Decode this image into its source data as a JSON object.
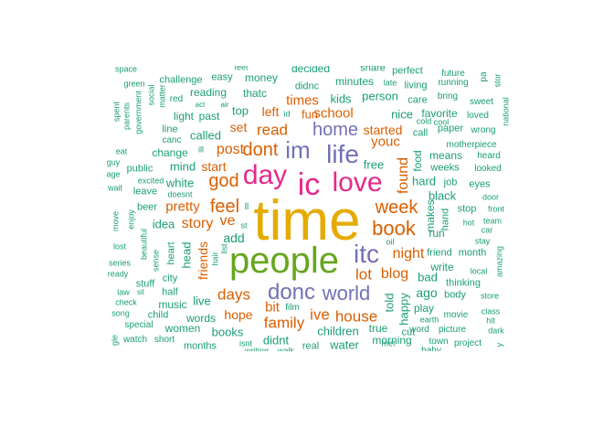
{
  "colors": {
    "green_teal": "#1b9e77",
    "orange": "#d95f02",
    "purple": "#7570b3",
    "magenta": "#e7298a",
    "lime": "#66a61e",
    "gold": "#e6ab02"
  },
  "words": [
    {
      "text": "time",
      "color": "gold",
      "weight": 100
    },
    {
      "text": "people",
      "color": "lime",
      "weight": 80
    },
    {
      "text": "ic",
      "color": "magenta",
      "weight": 60
    },
    {
      "text": "day",
      "color": "magenta",
      "weight": 55
    },
    {
      "text": "love",
      "color": "magenta",
      "weight": 55
    },
    {
      "text": "itc",
      "color": "purple",
      "weight": 45
    },
    {
      "text": "life",
      "color": "purple",
      "weight": 45
    },
    {
      "text": "im",
      "color": "purple",
      "weight": 42
    },
    {
      "text": "donc",
      "color": "purple",
      "weight": 40
    },
    {
      "text": "world",
      "color": "purple",
      "weight": 38
    },
    {
      "text": "home",
      "color": "purple",
      "weight": 34
    },
    {
      "text": "dont",
      "color": "orange",
      "weight": 32
    },
    {
      "text": "book",
      "color": "orange",
      "weight": 30
    },
    {
      "text": "week",
      "color": "orange",
      "weight": 28
    },
    {
      "text": "god",
      "color": "orange",
      "weight": 26
    },
    {
      "text": "feel",
      "color": "orange",
      "weight": 26
    },
    {
      "text": "house",
      "color": "orange",
      "weight": 24
    },
    {
      "text": "lot",
      "color": "orange",
      "weight": 24
    },
    {
      "text": "blog",
      "color": "orange",
      "weight": 24
    },
    {
      "text": "days",
      "color": "orange",
      "weight": 22
    },
    {
      "text": "family",
      "color": "orange",
      "weight": 22
    },
    {
      "text": "ive",
      "color": "orange",
      "weight": 22
    },
    {
      "text": "night",
      "color": "orange",
      "weight": 22
    },
    {
      "text": "post",
      "color": "orange",
      "weight": 20
    },
    {
      "text": "story",
      "color": "orange",
      "weight": 20
    },
    {
      "text": "youc",
      "color": "orange",
      "weight": 20
    },
    {
      "text": "read",
      "color": "orange",
      "weight": 20
    },
    {
      "text": "found",
      "color": "orange",
      "weight": 20
    },
    {
      "text": "school",
      "color": "orange",
      "weight": 18
    },
    {
      "text": "ve",
      "color": "orange",
      "weight": 18
    },
    {
      "text": "hope",
      "color": "orange",
      "weight": 18
    },
    {
      "text": "started",
      "color": "orange",
      "weight": 18
    },
    {
      "text": "times",
      "color": "orange",
      "weight": 18
    },
    {
      "text": "bit",
      "color": "orange",
      "weight": 18
    },
    {
      "text": "pretty",
      "color": "orange",
      "weight": 18
    },
    {
      "text": "start",
      "color": "orange",
      "weight": 18
    },
    {
      "text": "friends",
      "color": "orange",
      "weight": 18
    },
    {
      "text": "set",
      "color": "orange",
      "weight": 18
    },
    {
      "text": "left",
      "color": "orange",
      "weight": 18
    },
    {
      "text": "fun",
      "color": "orange",
      "weight": 17
    },
    {
      "text": "didnt",
      "color": "green_teal",
      "weight": 16
    },
    {
      "text": "children",
      "color": "green_teal",
      "weight": 16
    },
    {
      "text": "water",
      "color": "green_teal",
      "weight": 16
    },
    {
      "text": "black",
      "color": "green_teal",
      "weight": 16
    },
    {
      "text": "ago",
      "color": "green_teal",
      "weight": 16
    },
    {
      "text": "add",
      "color": "green_teal",
      "weight": 16
    },
    {
      "text": "top",
      "color": "green_teal",
      "weight": 16
    },
    {
      "text": "told",
      "color": "green_teal",
      "weight": 16
    },
    {
      "text": "happy",
      "color": "green_teal",
      "weight": 16
    },
    {
      "text": "hard",
      "color": "green_teal",
      "weight": 16
    },
    {
      "text": "free",
      "color": "green_teal",
      "weight": 16
    },
    {
      "text": "kids",
      "color": "green_teal",
      "weight": 15
    },
    {
      "text": "called",
      "color": "green_teal",
      "weight": 15
    },
    {
      "text": "live",
      "color": "green_teal",
      "weight": 15
    },
    {
      "text": "food",
      "color": "green_teal",
      "weight": 15
    },
    {
      "text": "person",
      "color": "green_teal",
      "weight": 15
    },
    {
      "text": "makes",
      "color": "green_teal",
      "weight": 15
    },
    {
      "text": "bad",
      "color": "green_teal",
      "weight": 15
    },
    {
      "text": "books",
      "color": "green_teal",
      "weight": 15
    },
    {
      "text": "nice",
      "color": "green_teal",
      "weight": 15
    },
    {
      "text": "mind",
      "color": "green_teal",
      "weight": 15
    },
    {
      "text": "white",
      "color": "green_teal",
      "weight": 15
    },
    {
      "text": "change",
      "color": "green_teal",
      "weight": 15
    },
    {
      "text": "idea",
      "color": "green_teal",
      "weight": 15
    },
    {
      "text": "head",
      "color": "green_teal",
      "weight": 15
    },
    {
      "text": "music",
      "color": "green_teal",
      "weight": 14
    },
    {
      "text": "minutes",
      "color": "green_teal",
      "weight": 14
    },
    {
      "text": "morning",
      "color": "green_teal",
      "weight": 14
    },
    {
      "text": "play",
      "color": "green_teal",
      "weight": 14
    },
    {
      "text": "reading",
      "color": "green_teal",
      "weight": 14
    },
    {
      "text": "favorite",
      "color": "green_teal",
      "weight": 14
    },
    {
      "text": "means",
      "color": "green_teal",
      "weight": 14
    },
    {
      "text": "write",
      "color": "green_teal",
      "weight": 14
    },
    {
      "text": "thatc",
      "color": "green_teal",
      "weight": 14
    },
    {
      "text": "money",
      "color": "green_teal",
      "weight": 14
    },
    {
      "text": "words",
      "color": "green_teal",
      "weight": 13
    },
    {
      "text": "women",
      "color": "green_teal",
      "weight": 13
    },
    {
      "text": "past",
      "color": "green_teal",
      "weight": 13
    },
    {
      "text": "run",
      "color": "green_teal",
      "weight": 13
    },
    {
      "text": "stop",
      "color": "green_teal",
      "weight": 13
    },
    {
      "text": "hand",
      "color": "green_teal",
      "weight": 13
    },
    {
      "text": "weeks",
      "color": "green_teal",
      "weight": 13
    },
    {
      "text": "didnc",
      "color": "green_teal",
      "weight": 13
    },
    {
      "text": "true",
      "color": "green_teal",
      "weight": 13
    },
    {
      "text": "light",
      "color": "green_teal",
      "weight": 12
    },
    {
      "text": "care",
      "color": "green_teal",
      "weight": 12
    },
    {
      "text": "call",
      "color": "green_teal",
      "weight": 12
    },
    {
      "text": "paper",
      "color": "green_teal",
      "weight": 12
    },
    {
      "text": "job",
      "color": "green_teal",
      "weight": 12
    },
    {
      "text": "eyes",
      "color": "green_teal",
      "weight": 12
    },
    {
      "text": "friend",
      "color": "green_teal",
      "weight": 12
    },
    {
      "text": "month",
      "color": "green_teal",
      "weight": 12
    },
    {
      "text": "thinking",
      "color": "green_teal",
      "weight": 12
    },
    {
      "text": "body",
      "color": "green_teal",
      "weight": 12
    },
    {
      "text": "cut",
      "color": "green_teal",
      "weight": 12
    },
    {
      "text": "living",
      "color": "green_teal",
      "weight": 12
    },
    {
      "text": "heart",
      "color": "green_teal",
      "weight": 12
    },
    {
      "text": "city",
      "color": "green_teal",
      "weight": 12
    },
    {
      "text": "half",
      "color": "green_teal",
      "weight": 12
    },
    {
      "text": "child",
      "color": "green_teal",
      "weight": 12
    },
    {
      "text": "easy",
      "color": "green_teal",
      "weight": 12
    },
    {
      "text": "challenge",
      "color": "green_teal",
      "weight": 12
    },
    {
      "text": "public",
      "color": "green_teal",
      "weight": 12
    },
    {
      "text": "leave",
      "color": "green_teal",
      "weight": 12
    },
    {
      "text": "beer",
      "color": "green_teal",
      "weight": 12
    },
    {
      "text": "stuff",
      "color": "green_teal",
      "weight": 12
    },
    {
      "text": "film",
      "color": "green_teal",
      "weight": 11
    },
    {
      "text": "special",
      "color": "green_teal",
      "weight": 11
    },
    {
      "text": "watch",
      "color": "green_teal",
      "weight": 11
    },
    {
      "text": "short",
      "color": "green_teal",
      "weight": 11
    },
    {
      "text": "months",
      "color": "green_teal",
      "weight": 11
    },
    {
      "text": "real",
      "color": "green_teal",
      "weight": 11
    },
    {
      "text": "running",
      "color": "green_teal",
      "weight": 11
    },
    {
      "text": "bring",
      "color": "green_teal",
      "weight": 11
    },
    {
      "text": "loved",
      "color": "green_teal",
      "weight": 11
    },
    {
      "text": "sweet",
      "color": "green_teal",
      "weight": 11
    },
    {
      "text": "wrong",
      "color": "green_teal",
      "weight": 11
    },
    {
      "text": "motherpiece",
      "color": "green_teal",
      "weight": 11
    },
    {
      "text": "heard",
      "color": "green_teal",
      "weight": 11
    },
    {
      "text": "looked",
      "color": "green_teal",
      "weight": 11
    },
    {
      "text": "door",
      "color": "green_teal",
      "weight": 11
    },
    {
      "text": "front",
      "color": "green_teal",
      "weight": 11
    },
    {
      "text": "team",
      "color": "green_teal",
      "weight": 11
    },
    {
      "text": "hot",
      "color": "green_teal",
      "weight": 11
    },
    {
      "text": "car",
      "color": "green_teal",
      "weight": 11
    },
    {
      "text": "stay",
      "color": "green_teal",
      "weight": 11
    },
    {
      "text": "local",
      "color": "green_teal",
      "weight": 11
    },
    {
      "text": "store",
      "color": "green_teal",
      "weight": 11
    },
    {
      "text": "class",
      "color": "green_teal",
      "weight": 11
    },
    {
      "text": "hit",
      "color": "green_teal",
      "weight": 11
    },
    {
      "text": "dark",
      "color": "green_teal",
      "weight": 11
    },
    {
      "text": "movie",
      "color": "green_teal",
      "weight": 11
    },
    {
      "text": "earth",
      "color": "green_teal",
      "weight": 10
    },
    {
      "text": "word",
      "color": "green_teal",
      "weight": 11
    },
    {
      "text": "picture",
      "color": "green_teal",
      "weight": 11
    },
    {
      "text": "town",
      "color": "green_teal",
      "weight": 11
    },
    {
      "text": "project",
      "color": "green_teal",
      "weight": 11
    },
    {
      "text": "baby",
      "color": "green_teal",
      "weight": 11
    },
    {
      "text": "song",
      "color": "green_teal",
      "weight": 11
    },
    {
      "text": "check",
      "color": "green_teal",
      "weight": 11
    },
    {
      "text": "law",
      "color": "green_teal",
      "weight": 11
    },
    {
      "text": "sit",
      "color": "green_teal",
      "weight": 10
    },
    {
      "text": "ready",
      "color": "green_teal",
      "weight": 11
    },
    {
      "text": "series",
      "color": "green_teal",
      "weight": 11
    },
    {
      "text": "lost",
      "color": "green_teal",
      "weight": 11
    },
    {
      "text": "wait",
      "color": "green_teal",
      "weight": 11
    },
    {
      "text": "age",
      "color": "green_teal",
      "weight": 11
    },
    {
      "text": "guy",
      "color": "green_teal",
      "weight": 11
    },
    {
      "text": "eat",
      "color": "green_teal",
      "weight": 11
    },
    {
      "text": "spent",
      "color": "green_teal",
      "weight": 11
    },
    {
      "text": "green",
      "color": "green_teal",
      "weight": 11
    },
    {
      "text": "space",
      "color": "green_teal",
      "weight": 11
    },
    {
      "text": "red",
      "color": "green_teal",
      "weight": 11
    },
    {
      "text": "act",
      "color": "green_teal",
      "weight": 10
    },
    {
      "text": "air",
      "color": "green_teal",
      "weight": 10
    },
    {
      "text": "canc",
      "color": "green_teal",
      "weight": 11
    },
    {
      "text": "line",
      "color": "green_teal",
      "weight": 11
    },
    {
      "text": "excited",
      "color": "green_teal",
      "weight": 10
    },
    {
      "text": "doesnt",
      "color": "green_teal",
      "weight": 10
    },
    {
      "text": "ill",
      "color": "green_teal",
      "weight": 10
    },
    {
      "text": "st",
      "color": "green_teal",
      "weight": 10
    },
    {
      "text": "id",
      "color": "green_teal",
      "weight": 10
    },
    {
      "text": "late",
      "color": "green_teal",
      "weight": 10
    },
    {
      "text": "cold",
      "color": "green_teal",
      "weight": 10
    },
    {
      "text": "cool",
      "color": "green_teal",
      "weight": 10
    },
    {
      "text": "future",
      "color": "green_teal",
      "weight": 11
    },
    {
      "text": "pa",
      "color": "green_teal",
      "weight": 10
    },
    {
      "text": "stor",
      "color": "green_teal",
      "weight": 10
    },
    {
      "text": "national",
      "color": "green_teal",
      "weight": 10
    },
    {
      "text": "amazing",
      "color": "green_teal",
      "weight": 10
    },
    {
      "text": "oil",
      "color": "green_teal",
      "weight": 10
    },
    {
      "text": "met",
      "color": "green_teal",
      "weight": 10
    },
    {
      "text": "isnt",
      "color": "green_teal",
      "weight": 10
    },
    {
      "text": "hair",
      "color": "green_teal",
      "weight": 10
    },
    {
      "text": "list",
      "color": "green_teal",
      "weight": 10
    },
    {
      "text": "ll",
      "color": "green_teal",
      "weight": 10
    },
    {
      "text": "sense",
      "color": "green_teal",
      "weight": 10
    },
    {
      "text": "beautiful",
      "color": "green_teal",
      "weight": 10
    },
    {
      "text": "enjoy",
      "color": "green_teal",
      "weight": 10
    },
    {
      "text": "move",
      "color": "green_teal",
      "weight": 10
    },
    {
      "text": "parents",
      "color": "green_teal",
      "weight": 10
    },
    {
      "text": "government",
      "color": "green_teal",
      "weight": 10
    },
    {
      "text": "social",
      "color": "green_teal",
      "weight": 10
    },
    {
      "text": "matter",
      "color": "green_teal",
      "weight": 10
    },
    {
      "text": "decided",
      "color": "green_teal",
      "weight": 12
    },
    {
      "text": "share",
      "color": "green_teal",
      "weight": 11
    },
    {
      "text": "perfect",
      "color": "green_teal",
      "weight": 11
    },
    {
      "text": "feet",
      "color": "green_teal",
      "weight": 10
    },
    {
      "text": "gle",
      "color": "green_teal",
      "weight": 10
    },
    {
      "text": "writing",
      "color": "green_teal",
      "weight": 10
    },
    {
      "text": "walk",
      "color": "green_teal",
      "weight": 10
    },
    {
      "text": "y",
      "color": "green_teal",
      "weight": 10
    }
  ]
}
